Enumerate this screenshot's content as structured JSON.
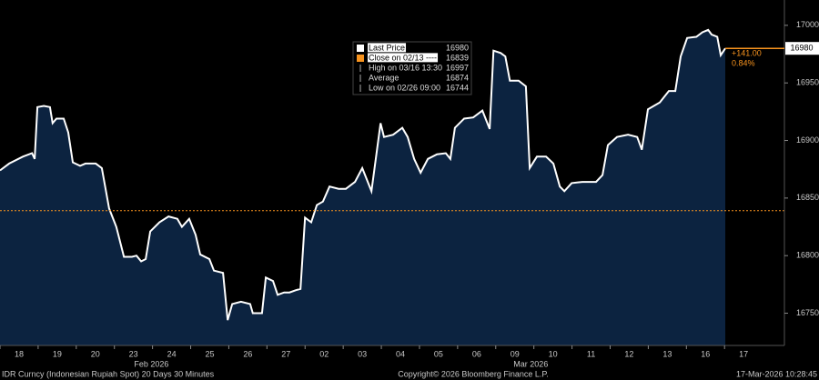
{
  "chart_data": {
    "type": "area",
    "series": [
      {
        "name": "Last Price",
        "color": "#ffffff",
        "fill": "#0c2340",
        "x": [
          0,
          0.24,
          0.6,
          0.84,
          0.91,
          0.98,
          1.15,
          1.31,
          1.38,
          1.48,
          1.67,
          1.79,
          1.91,
          2.1,
          2.24,
          2.51,
          2.67,
          2.86,
          3.05,
          3.25,
          3.46,
          3.58,
          3.7,
          3.82,
          3.94,
          4.18,
          4.42,
          4.65,
          4.77,
          4.96,
          5.13,
          5.25,
          5.49,
          5.61,
          5.85,
          5.97,
          6.09,
          6.32,
          6.56,
          6.63,
          6.87,
          6.97,
          7.16,
          7.28,
          7.45,
          7.59,
          7.76,
          7.88,
          8.0,
          8.16,
          8.31,
          8.47,
          8.64,
          8.88,
          9.07,
          9.31,
          9.5,
          9.74,
          9.98,
          10.07,
          10.31,
          10.55,
          10.69,
          10.86,
          11.03,
          11.22,
          11.46,
          11.69,
          11.81,
          11.93,
          12.17,
          12.41,
          12.65,
          12.84,
          12.94,
          13.13,
          13.25,
          13.37,
          13.6,
          13.79,
          13.89,
          14.08,
          14.32,
          14.51,
          14.68,
          14.8,
          14.99,
          15.27,
          15.63,
          15.8,
          15.94,
          16.18,
          16.47,
          16.71,
          16.83,
          16.99,
          17.3,
          17.54,
          17.71,
          17.85,
          18.02,
          18.26,
          18.42,
          18.57,
          18.66,
          18.81,
          18.9,
          19.02
        ],
        "values": [
          16874,
          16880,
          16886,
          16889,
          16884,
          16929,
          16930,
          16929,
          16915,
          16919,
          16919,
          16907,
          16881,
          16878,
          16880,
          16880,
          16876,
          16841,
          16825,
          16799,
          16799,
          16800,
          16795,
          16797,
          16821,
          16829,
          16834,
          16832,
          16825,
          16832,
          16818,
          16801,
          16797,
          16787,
          16785,
          16744,
          16758,
          16760,
          16758,
          16750,
          16750,
          16781,
          16778,
          16766,
          16768,
          16768,
          16770,
          16771,
          16833,
          16829,
          16844,
          16847,
          16860,
          16858,
          16858,
          16864,
          16876,
          16856,
          16915,
          16903,
          16905,
          16911,
          16903,
          16884,
          16872,
          16884,
          16888,
          16889,
          16884,
          16911,
          16919,
          16920,
          16926,
          16910,
          16978,
          16976,
          16973,
          16952,
          16952,
          16947,
          16876,
          16886,
          16886,
          16880,
          16860,
          16856,
          16863,
          16864,
          16864,
          16870,
          16896,
          16903,
          16905,
          16903,
          16892,
          16927,
          16933,
          16943,
          16943,
          16973,
          16989,
          16990,
          16994,
          16996,
          16992,
          16990,
          16974,
          16980
        ]
      }
    ],
    "last_price": 16980,
    "reference_line": {
      "label": "Close on 02/13 ----",
      "value": 16839,
      "color": "#f7931e"
    },
    "stats": [
      {
        "label": "High on 03/16 13:30",
        "value": 16997
      },
      {
        "label": "Average",
        "value": 16874
      },
      {
        "label": "Low on 02/26 09:00",
        "value": 16744
      }
    ],
    "change": {
      "value": 141,
      "label": "+141.00"
    },
    "change_pct": {
      "value": 0.84,
      "label": "0.84%"
    },
    "categories": [
      "18",
      "19",
      "20",
      "23",
      "24",
      "25",
      "26",
      "27",
      "02",
      "03",
      "04",
      "05",
      "06",
      "09",
      "10",
      "11",
      "12",
      "13",
      "16",
      "17"
    ],
    "months": [
      {
        "label": "Feb 2026",
        "x": 3.97
      },
      {
        "label": "Mar 2026",
        "x": 13.92
      }
    ],
    "xlim": [
      0,
      20.57
    ],
    "ylim": [
      16722,
      17022
    ],
    "yticks": [
      16750,
      16800,
      16850,
      16900,
      16950,
      17000
    ],
    "footer": {
      "left": "IDR Curncy (Indonesian Rupiah Spot) 20 Days 30 Minutes",
      "center": "Copyright© 2026 Bloomberg Finance L.P.",
      "right": "17-Mar-2026 10:28:45"
    }
  }
}
